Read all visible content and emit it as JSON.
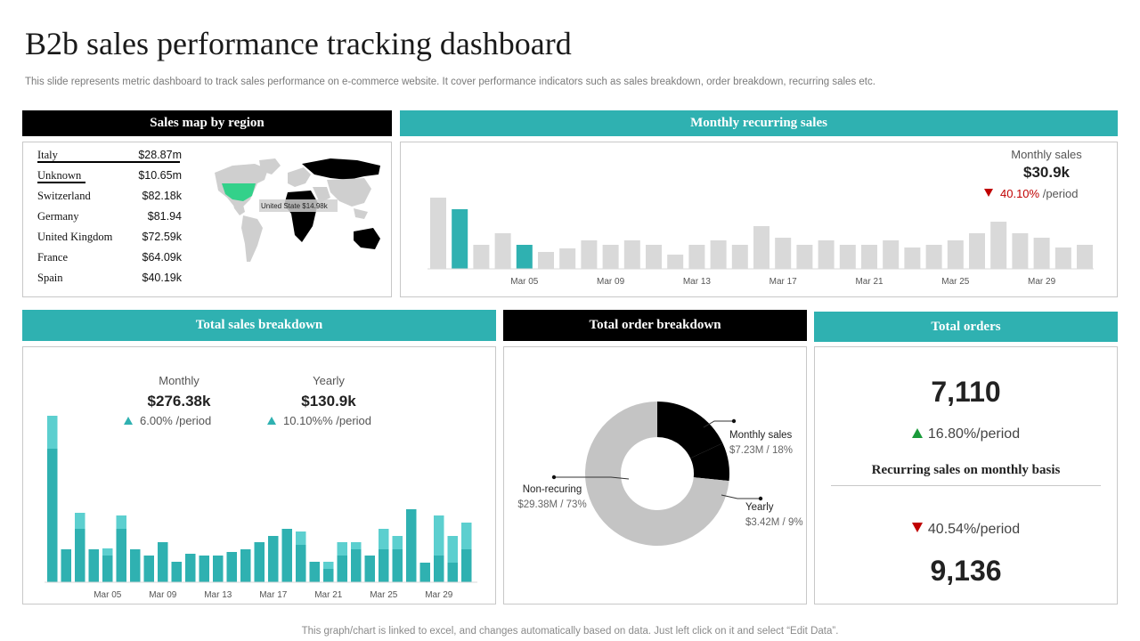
{
  "page": {
    "title": "B2b sales performance tracking dashboard",
    "subtitle": "This slide represents metric dashboard to track sales performance on e-commerce website. It cover performance indicators such as sales breakdown, order breakdown, recurring sales etc.",
    "footer": "This graph/chart is linked to excel, and changes automatically based on data. Just left click on it and select “Edit Data”."
  },
  "colors": {
    "teal": "#2fb1b1",
    "teal_light": "#5ccfcf",
    "gray_bar": "#d9d9d9",
    "map_gray": "#cfcfcf",
    "map_green": "#33d18a",
    "red": "#c00000",
    "green": "#1a9a3a"
  },
  "sales_map": {
    "header": "Sales map by region",
    "regions": [
      {
        "name": "Italy",
        "value": "$28.87m"
      },
      {
        "name": "Unknown",
        "value": "$10.65m"
      },
      {
        "name": "Switzerland",
        "value": "$82.18k"
      },
      {
        "name": "Germany",
        "value": "$81.94"
      },
      {
        "name": "United Kingdom",
        "value": "$72.59k"
      },
      {
        "name": "France",
        "value": "$64.09k"
      },
      {
        "name": "Spain",
        "value": "$40.19k"
      }
    ],
    "map_label": "United State $14.98k"
  },
  "monthly_recurring": {
    "header": "Monthly recurring sales",
    "metric_label": "Monthly sales",
    "metric_value": "$30.9k",
    "change_pct": "40.10%",
    "change_suffix": " /period"
  },
  "total_sales": {
    "header": "Total sales breakdown",
    "monthly_label": "Monthly",
    "monthly_value": "$276.38k",
    "monthly_change": "6.00% /period",
    "yearly_label": "Yearly",
    "yearly_value": "$130.9k",
    "yearly_change": "10.10%% /period"
  },
  "order_breakdown": {
    "header": "Total order breakdown",
    "slices": [
      {
        "label": "Monthly sales",
        "detail": "$7.23M / 18%"
      },
      {
        "label": "Yearly",
        "detail": "$3.42M / 9%"
      },
      {
        "label": "Non-recuring",
        "detail": "$29.38M / 73%"
      }
    ]
  },
  "total_orders": {
    "header": "Total orders",
    "value": "7,110",
    "change": "16.80%/period",
    "sub_title": "Recurring sales on monthly basis",
    "recurring_change": "40.54%/period",
    "recurring_value": "9,136"
  },
  "chart_data": [
    {
      "type": "bar",
      "name": "monthly-recurring-sales",
      "categories": [
        "Mar 01",
        "Mar 02",
        "Mar 03",
        "Mar 04",
        "Mar 05",
        "Mar 06",
        "Mar 07",
        "Mar 08",
        "Mar 09",
        "Mar 10",
        "Mar 11",
        "Mar 12",
        "Mar 13",
        "Mar 14",
        "Mar 15",
        "Mar 16",
        "Mar 17",
        "Mar 18",
        "Mar 19",
        "Mar 20",
        "Mar 21",
        "Mar 22",
        "Mar 23",
        "Mar 24",
        "Mar 25",
        "Mar 26",
        "Mar 27",
        "Mar 28",
        "Mar 29",
        "Mar 30",
        "Mar 31"
      ],
      "tick_labels": [
        "Mar 05",
        "Mar 09",
        "Mar 13",
        "Mar 17",
        "Mar 21",
        "Mar 25",
        "Mar 29"
      ],
      "values": [
        80,
        67,
        27,
        40,
        27,
        19,
        23,
        32,
        27,
        32,
        27,
        16,
        27,
        32,
        27,
        48,
        35,
        27,
        32,
        27,
        27,
        32,
        24,
        27,
        32,
        40,
        53,
        40,
        35,
        24,
        27
      ],
      "highlight_indices": [
        1,
        4
      ],
      "ylim": [
        0,
        100
      ]
    },
    {
      "type": "bar",
      "name": "total-sales-breakdown",
      "stacked": true,
      "categories": [
        "Mar 01",
        "Mar 02",
        "Mar 03",
        "Mar 04",
        "Mar 05",
        "Mar 06",
        "Mar 07",
        "Mar 08",
        "Mar 09",
        "Mar 10",
        "Mar 11",
        "Mar 12",
        "Mar 13",
        "Mar 14",
        "Mar 15",
        "Mar 16",
        "Mar 17",
        "Mar 18",
        "Mar 19",
        "Mar 20",
        "Mar 21",
        "Mar 22",
        "Mar 23",
        "Mar 24",
        "Mar 25",
        "Mar 26",
        "Mar 27",
        "Mar 28",
        "Mar 29",
        "Mar 30",
        "Mar 31"
      ],
      "tick_labels": [
        "Mar 05",
        "Mar 09",
        "Mar 13",
        "Mar 17",
        "Mar 21",
        "Mar 25",
        "Mar 29"
      ],
      "series": [
        {
          "values": [
            150,
            37,
            60,
            37,
            30,
            60,
            37,
            30,
            45,
            23,
            32,
            30,
            30,
            34,
            37,
            45,
            52,
            60,
            42,
            23,
            15,
            30,
            37,
            30,
            37,
            37,
            82,
            22,
            30,
            22,
            37
          ]
        },
        {
          "values": [
            37,
            0,
            18,
            0,
            8,
            15,
            0,
            0,
            0,
            0,
            0,
            0,
            0,
            0,
            0,
            0,
            0,
            0,
            15,
            0,
            8,
            15,
            8,
            0,
            23,
            15,
            0,
            0,
            45,
            30,
            30
          ]
        }
      ],
      "ylim": [
        0,
        200
      ]
    },
    {
      "type": "pie",
      "name": "total-order-breakdown",
      "donut": true,
      "labels": [
        "Monthly sales",
        "Yearly",
        "Non-recuring"
      ],
      "values": [
        7.23,
        3.42,
        29.38
      ],
      "percent": [
        18,
        9,
        73
      ]
    }
  ]
}
